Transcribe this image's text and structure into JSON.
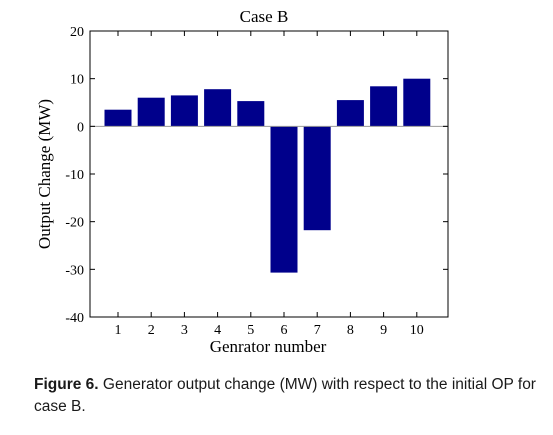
{
  "chart_data": {
    "type": "bar",
    "title": "Case B",
    "xlabel": "Genrator number",
    "ylabel": "Output Change (MW)",
    "categories": [
      "1",
      "2",
      "3",
      "4",
      "5",
      "6",
      "7",
      "8",
      "9",
      "10"
    ],
    "values": [
      3.5,
      6.0,
      6.5,
      7.8,
      5.3,
      -30.7,
      -21.8,
      5.5,
      8.4,
      10.0
    ],
    "ylim": [
      -40,
      20
    ],
    "yticks": [
      20,
      10,
      0,
      -10,
      -20,
      -30,
      -40
    ],
    "grid": false,
    "bar_color": "#00008b",
    "zero_line_color": "#9a9a9a"
  },
  "caption": {
    "label": "Figure 6.",
    "text": " Generator output change (MW) with respect to the initial OP for case B."
  }
}
